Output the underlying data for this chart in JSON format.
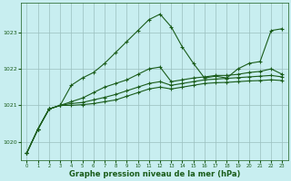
{
  "title": "Graphe pression niveau de la mer (hPa)",
  "bg_color": "#c8eef0",
  "grid_color": "#9bbfbf",
  "line_color": "#1a5c1a",
  "xlim": [
    -0.5,
    23.5
  ],
  "ylim": [
    1019.5,
    1023.8
  ],
  "yticks": [
    1020,
    1021,
    1022,
    1023
  ],
  "xticks": [
    0,
    1,
    2,
    3,
    4,
    5,
    6,
    7,
    8,
    9,
    10,
    11,
    12,
    13,
    14,
    15,
    16,
    17,
    18,
    19,
    20,
    21,
    22,
    23
  ],
  "series": [
    [
      1019.7,
      1020.35,
      1020.9,
      1021.0,
      1021.55,
      1021.75,
      1021.9,
      1022.15,
      1022.45,
      1022.75,
      1023.05,
      1023.35,
      1023.5,
      1023.15,
      1022.6,
      1022.15,
      1021.75,
      1021.8,
      1021.75,
      1022.0,
      1022.15,
      1022.2,
      1023.05,
      1023.1
    ],
    [
      1019.7,
      1020.35,
      1020.9,
      1021.0,
      1021.1,
      1021.2,
      1021.35,
      1021.5,
      1021.6,
      1021.7,
      1021.85,
      1022.0,
      1022.05,
      1021.65,
      1021.7,
      1021.75,
      1021.78,
      1021.82,
      1021.82,
      1021.85,
      1021.9,
      1021.93,
      1022.0,
      1021.85
    ],
    [
      1019.7,
      1020.35,
      1020.9,
      1021.0,
      1021.05,
      1021.08,
      1021.15,
      1021.22,
      1021.3,
      1021.4,
      1021.5,
      1021.6,
      1021.65,
      1021.55,
      1021.6,
      1021.65,
      1021.7,
      1021.72,
      1021.74,
      1021.76,
      1021.78,
      1021.8,
      1021.82,
      1021.78
    ],
    [
      1019.7,
      1020.35,
      1020.9,
      1021.0,
      1021.0,
      1021.02,
      1021.05,
      1021.1,
      1021.15,
      1021.25,
      1021.35,
      1021.45,
      1021.5,
      1021.45,
      1021.5,
      1021.55,
      1021.6,
      1021.62,
      1021.63,
      1021.65,
      1021.67,
      1021.68,
      1021.7,
      1021.68
    ]
  ],
  "xlabel_fontsize": 6.0,
  "tick_fontsize": 4.5
}
